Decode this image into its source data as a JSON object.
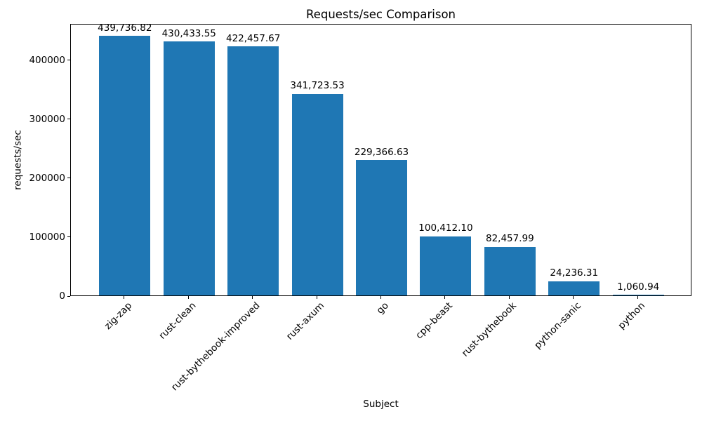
{
  "chart_data": {
    "type": "bar",
    "title": "Requests/sec Comparison",
    "xlabel": "Subject",
    "ylabel": "requests/sec",
    "categories": [
      "zig-zap",
      "rust-clean",
      "rust-bythebook-improved",
      "rust-axum",
      "go",
      "cpp-beast",
      "rust-bythebook",
      "python-sanic",
      "python"
    ],
    "values": [
      439736.82,
      430433.55,
      422457.67,
      341723.53,
      229366.63,
      100412.1,
      82457.99,
      24236.31,
      1060.94
    ],
    "bar_labels": [
      "439,736.82",
      "430,433.55",
      "422,457.67",
      "341,723.53",
      "229,366.63",
      "100,412.10",
      "82,457.99",
      "24,236.31",
      "1,060.94"
    ],
    "yticks": [
      0,
      100000,
      200000,
      300000,
      400000
    ],
    "ytick_labels": [
      "0",
      "100000",
      "200000",
      "300000",
      "400000"
    ],
    "ylim": [
      0,
      461724
    ],
    "bar_color": "#1f77b4",
    "background_color": "#ffffff",
    "grid": false,
    "legend": "none",
    "x_tick_rotation_deg": 45
  }
}
